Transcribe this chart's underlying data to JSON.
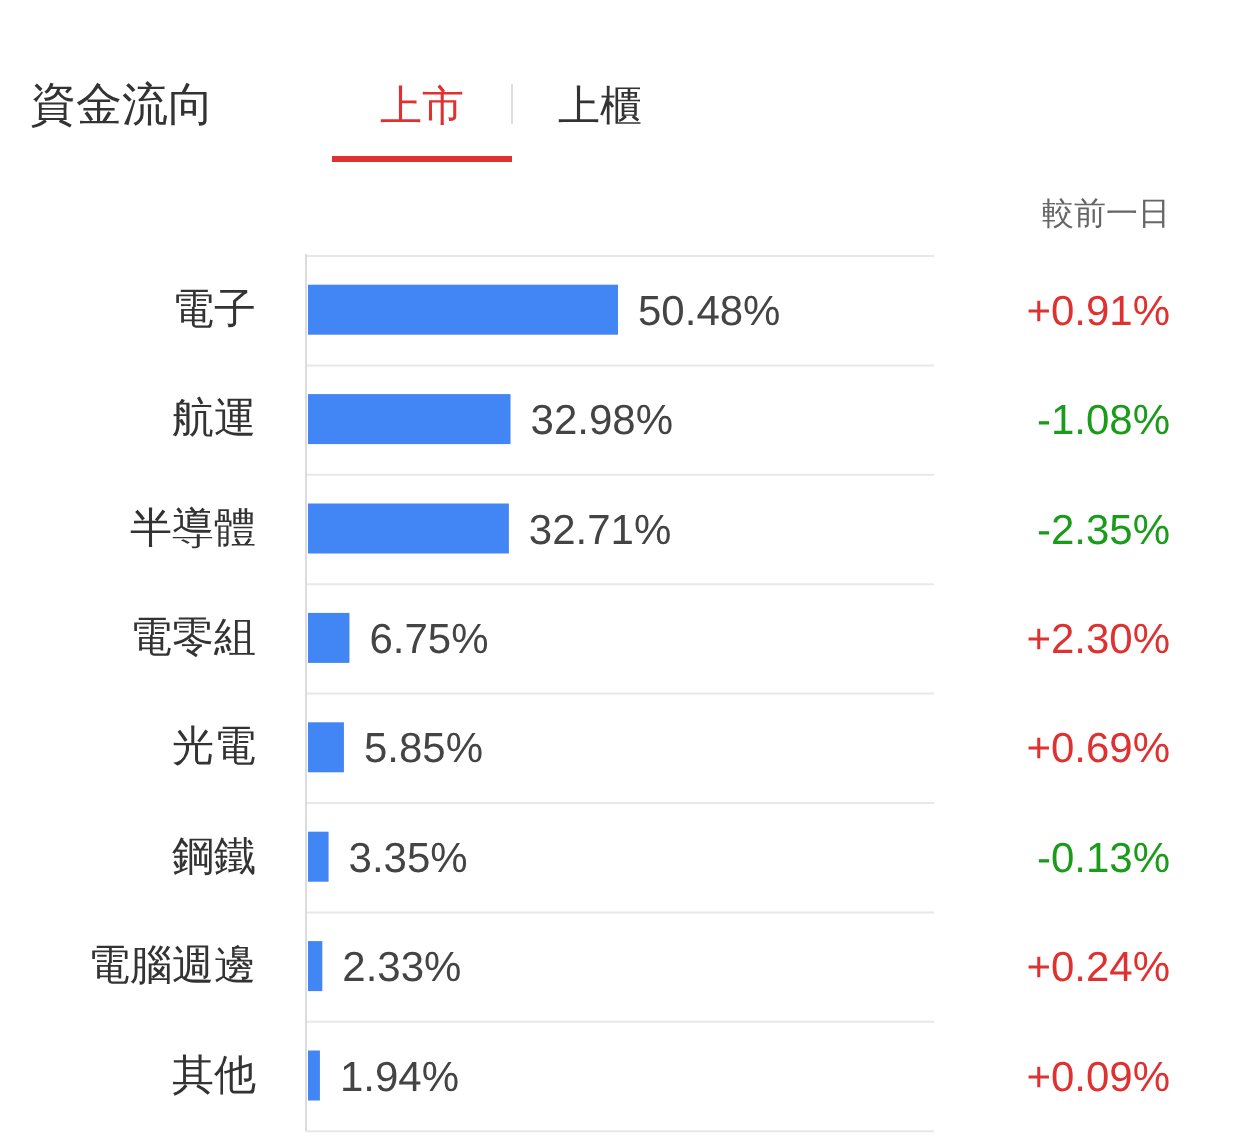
{
  "chart_data": {
    "type": "bar",
    "orientation": "horizontal",
    "title": "資金流向",
    "categories": [
      "電子",
      "航運",
      "半導體",
      "電零組",
      "光電",
      "鋼鐵",
      "電腦週邊",
      "其他"
    ],
    "values": [
      50.48,
      32.98,
      32.71,
      6.75,
      5.85,
      3.35,
      2.33,
      1.94
    ],
    "value_labels": [
      "50.48%",
      "32.98%",
      "32.71%",
      "6.75%",
      "5.85%",
      "3.35%",
      "2.33%",
      "1.94%"
    ],
    "color": "#4285f4",
    "annotations": [
      "上市",
      "上櫃",
      "較前一日",
      "+0.91%",
      "-1.08%",
      "-2.35%",
      "+2.30%",
      "+0.69%",
      "-0.13%",
      "+0.24%",
      "+0.09%"
    ]
  }
}
